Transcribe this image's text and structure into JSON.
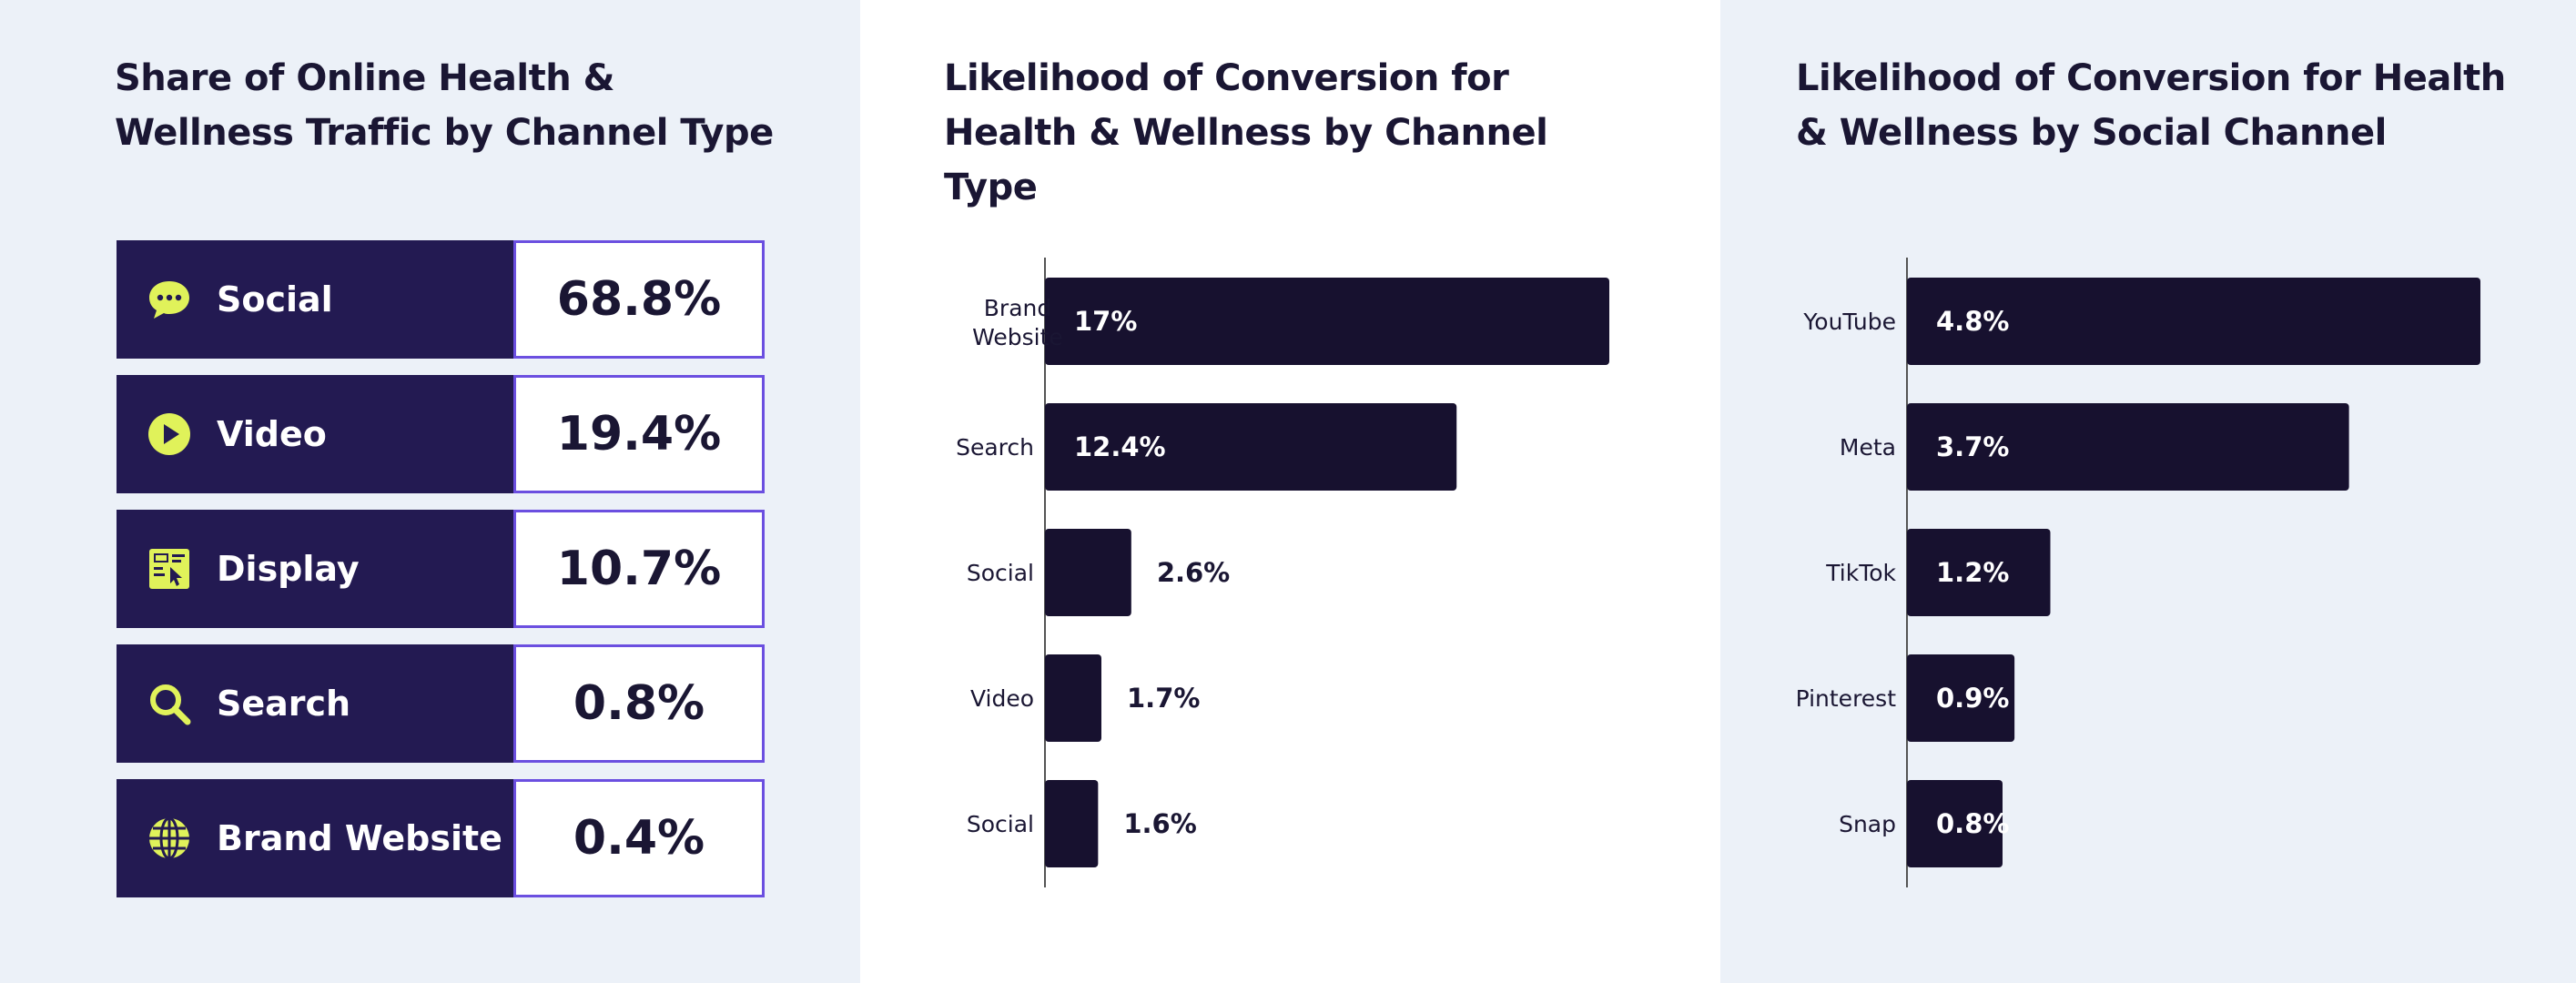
{
  "colors": {
    "page_bg": "#ecf1f8",
    "panel_white": "#ffffff",
    "navy": "#231a52",
    "bar_dark": "#17112f",
    "accent_purple": "#6b4fe0",
    "icon_yellow": "#e0f25a",
    "text_dark": "#1a1633"
  },
  "share_panel": {
    "title": "Share of Online Health & Wellness Traffic by Channel Type",
    "rows": [
      {
        "label": "Social",
        "value": "68.8%",
        "icon": "chat-bubble-icon"
      },
      {
        "label": "Video",
        "value": "19.4%",
        "icon": "play-icon"
      },
      {
        "label": "Display",
        "value": "10.7%",
        "icon": "display-ad-icon"
      },
      {
        "label": "Search",
        "value": "0.8%",
        "icon": "search-icon"
      },
      {
        "label": "Brand Website",
        "value": "0.4%",
        "icon": "globe-icon"
      }
    ]
  },
  "chart_data": [
    {
      "type": "bar",
      "orientation": "horizontal",
      "title": "Likelihood of Conversion for Health & Wellness by Channel Type",
      "categories": [
        "Brand Website",
        "Search",
        "Social",
        "Video",
        "Social"
      ],
      "values": [
        17,
        12.4,
        2.6,
        1.7,
        1.6
      ],
      "value_labels": [
        "17%",
        "12.4%",
        "2.6%",
        "1.7%",
        "1.6%"
      ],
      "xlim": [
        0,
        17
      ],
      "grid": false,
      "legend": "none"
    },
    {
      "type": "bar",
      "orientation": "horizontal",
      "title": "Likelihood of Conversion for Health & Wellness by Social Channel",
      "categories": [
        "YouTube",
        "Meta",
        "TikTok",
        "Pinterest",
        "Snap"
      ],
      "values": [
        4.8,
        3.7,
        1.2,
        0.9,
        0.8
      ],
      "value_labels": [
        "4.8%",
        "3.7%",
        "1.2%",
        "0.9%",
        "0.8%"
      ],
      "xlim": [
        0,
        4.8
      ],
      "grid": false,
      "legend": "none"
    }
  ]
}
